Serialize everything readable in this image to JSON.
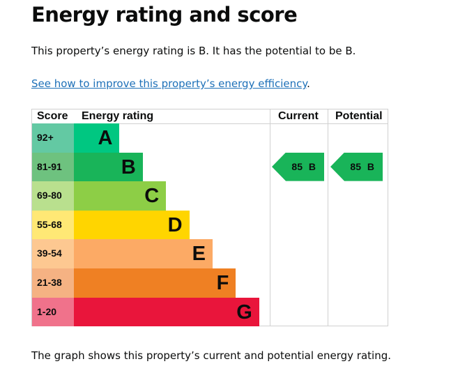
{
  "title": "Energy rating and score",
  "summary": "This property’s energy rating is B. It has the potential to be B.",
  "link": "See how to improve this property’s energy efficiency",
  "link_suffix": ".",
  "chart_data": {
    "type": "table",
    "headers": {
      "score": "Score",
      "rating": "Energy rating",
      "current": "Current",
      "potential": "Potential"
    },
    "bands": [
      {
        "score": "92+",
        "letter": "A",
        "score_color": "#63c9a3",
        "color": "#00c781",
        "length": 1
      },
      {
        "score": "81-91",
        "letter": "B",
        "score_color": "#6ec27f",
        "color": "#19b459",
        "length": 2
      },
      {
        "score": "69-80",
        "letter": "C",
        "score_color": "#b9e08e",
        "color": "#8dce46",
        "length": 3
      },
      {
        "score": "55-68",
        "letter": "D",
        "score_color": "#ffe875",
        "color": "#ffd500",
        "length": 4
      },
      {
        "score": "39-54",
        "letter": "E",
        "score_color": "#fdc891",
        "color": "#fcaa65",
        "length": 5
      },
      {
        "score": "21-38",
        "letter": "F",
        "score_color": "#f5b283",
        "color": "#ef8023",
        "length": 6
      },
      {
        "score": "1-20",
        "letter": "G",
        "score_color": "#f0728b",
        "color": "#e9153b",
        "length": 7
      }
    ],
    "current": {
      "score": 85,
      "letter": "B",
      "label": "85 B"
    },
    "potential": {
      "score": 85,
      "letter": "B",
      "label": "85 B"
    }
  },
  "footer": "The graph shows this property’s current and potential energy rating."
}
